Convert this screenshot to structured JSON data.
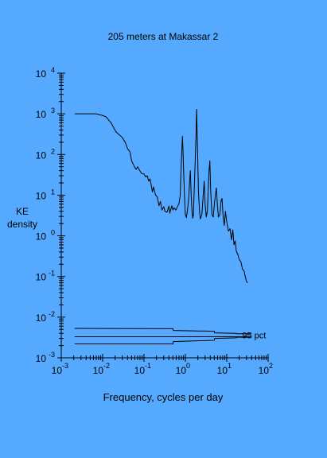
{
  "chart_data": {
    "type": "line",
    "title": "205 meters at Makassar 2",
    "xlabel": "Frequency, cycles per day",
    "ylabel_lines": [
      "KE",
      "density"
    ],
    "x_scale": "log",
    "y_scale": "log",
    "xlim": [
      0.001,
      100
    ],
    "ylim": [
      0.001,
      10000
    ],
    "x_ticks": [
      {
        "base": "10",
        "exp": "-3",
        "value": 0.001
      },
      {
        "base": "10",
        "exp": "-2",
        "value": 0.01
      },
      {
        "base": "10",
        "exp": "-1",
        "value": 0.1
      },
      {
        "base": "10",
        "exp": "0",
        "value": 1
      },
      {
        "base": "10",
        "exp": "1",
        "value": 10
      },
      {
        "base": "10",
        "exp": "2",
        "value": 100
      }
    ],
    "y_ticks": [
      {
        "base": "10",
        "exp": "-3",
        "value": 0.001
      },
      {
        "base": "10",
        "exp": "-2",
        "value": 0.01
      },
      {
        "base": "10",
        "exp": "-1",
        "value": 0.1
      },
      {
        "base": "10",
        "exp": "0",
        "value": 1
      },
      {
        "base": "10",
        "exp": "1",
        "value": 10
      },
      {
        "base": "10",
        "exp": "2",
        "value": 100
      },
      {
        "base": "10",
        "exp": "3",
        "value": 1000
      },
      {
        "base": "10",
        "exp": "4",
        "value": 10000
      }
    ],
    "grid": false,
    "series": [
      {
        "values_xy": [
          [
            0.0021,
            1000
          ],
          [
            0.0069,
            1000
          ],
          [
            0.0096,
            920
          ],
          [
            0.012,
            850
          ],
          [
            0.016,
            600
          ],
          [
            0.021,
            360
          ],
          [
            0.03,
            260
          ],
          [
            0.035,
            200
          ],
          [
            0.04,
            140
          ],
          [
            0.046,
            115
          ],
          [
            0.05,
            70
          ],
          [
            0.056,
            55
          ],
          [
            0.06,
            48
          ],
          [
            0.065,
            43
          ],
          [
            0.07,
            50
          ],
          [
            0.079,
            40
          ],
          [
            0.088,
            34
          ],
          [
            0.1,
            33
          ],
          [
            0.11,
            28
          ],
          [
            0.12,
            30
          ],
          [
            0.13,
            22
          ],
          [
            0.14,
            25
          ],
          [
            0.16,
            12
          ],
          [
            0.17,
            16
          ],
          [
            0.19,
            10
          ],
          [
            0.21,
            9
          ],
          [
            0.23,
            5.5
          ],
          [
            0.25,
            7
          ],
          [
            0.27,
            4.3
          ],
          [
            0.3,
            5.2
          ],
          [
            0.32,
            4.0
          ],
          [
            0.36,
            3.8
          ],
          [
            0.4,
            5.4
          ],
          [
            0.42,
            3.6
          ],
          [
            0.47,
            5.5
          ],
          [
            0.5,
            4.3
          ],
          [
            0.53,
            4.9
          ],
          [
            0.59,
            4.3
          ],
          [
            0.63,
            5.0
          ],
          [
            0.7,
            6.2
          ],
          [
            0.75,
            10
          ],
          [
            0.8,
            70
          ],
          [
            0.85,
            280
          ],
          [
            0.88,
            110
          ],
          [
            0.92,
            25
          ],
          [
            0.97,
            6
          ],
          [
            1.0,
            3.3
          ],
          [
            1.06,
            2.8
          ],
          [
            1.13,
            4.5
          ],
          [
            1.2,
            8
          ],
          [
            1.26,
            20
          ],
          [
            1.32,
            40
          ],
          [
            1.38,
            10
          ],
          [
            1.45,
            4
          ],
          [
            1.5,
            2.7
          ],
          [
            1.56,
            3.1
          ],
          [
            1.64,
            15
          ],
          [
            1.72,
            60
          ],
          [
            1.81,
            300
          ],
          [
            1.87,
            1300
          ],
          [
            1.93,
            300
          ],
          [
            2.0,
            60
          ],
          [
            2.07,
            12
          ],
          [
            2.2,
            4
          ],
          [
            2.3,
            2.6
          ],
          [
            2.5,
            3.3
          ],
          [
            2.7,
            10
          ],
          [
            2.85,
            22
          ],
          [
            3.0,
            6
          ],
          [
            3.2,
            2.9
          ],
          [
            3.4,
            4
          ],
          [
            3.7,
            35
          ],
          [
            3.9,
            70
          ],
          [
            4.1,
            12
          ],
          [
            4.4,
            3.3
          ],
          [
            4.7,
            2.9
          ],
          [
            5.1,
            7
          ],
          [
            5.6,
            15
          ],
          [
            6.0,
            5
          ],
          [
            6.3,
            2.9
          ],
          [
            6.8,
            3.3
          ],
          [
            7.3,
            7.4
          ],
          [
            7.7,
            8.3
          ],
          [
            8.1,
            3.4
          ],
          [
            8.7,
            1.8
          ],
          [
            9.3,
            4
          ],
          [
            10.0,
            2.2
          ],
          [
            11.0,
            1.3
          ],
          [
            12.0,
            1.5
          ],
          [
            13.0,
            0.8
          ],
          [
            14.0,
            1.4
          ],
          [
            15.0,
            0.6
          ],
          [
            16.0,
            0.75
          ],
          [
            17.0,
            0.42
          ],
          [
            18.5,
            0.35
          ],
          [
            20.0,
            0.26
          ],
          [
            22.0,
            0.23
          ],
          [
            24.0,
            0.15
          ],
          [
            26.0,
            0.14
          ],
          [
            28.0,
            0.1
          ],
          [
            30.0,
            0.075
          ],
          [
            32.0,
            0.07
          ]
        ]
      }
    ],
    "confidence_lines": [
      {
        "values_xy": [
          [
            0.0021,
            0.0053
          ],
          [
            0.5,
            0.0052
          ],
          [
            0.51,
            0.0047
          ],
          [
            5.0,
            0.0045
          ],
          [
            5.1,
            0.0041
          ],
          [
            17.0,
            0.004
          ],
          [
            17.3,
            0.0039
          ],
          [
            40.0,
            0.0039
          ]
        ]
      },
      {
        "values_xy": [
          [
            0.0021,
            0.0033
          ],
          [
            40.0,
            0.0033
          ]
        ]
      },
      {
        "values_xy": [
          [
            0.0021,
            0.0022
          ],
          [
            0.5,
            0.0022
          ],
          [
            0.51,
            0.0025
          ],
          [
            5.0,
            0.0027
          ],
          [
            5.1,
            0.003
          ],
          [
            17.0,
            0.0031
          ],
          [
            17.3,
            0.0032
          ],
          [
            40.0,
            0.0032
          ]
        ]
      }
    ],
    "annotations": [
      {
        "text": "95 pct",
        "x": 40.0,
        "y": 0.0033
      }
    ]
  }
}
